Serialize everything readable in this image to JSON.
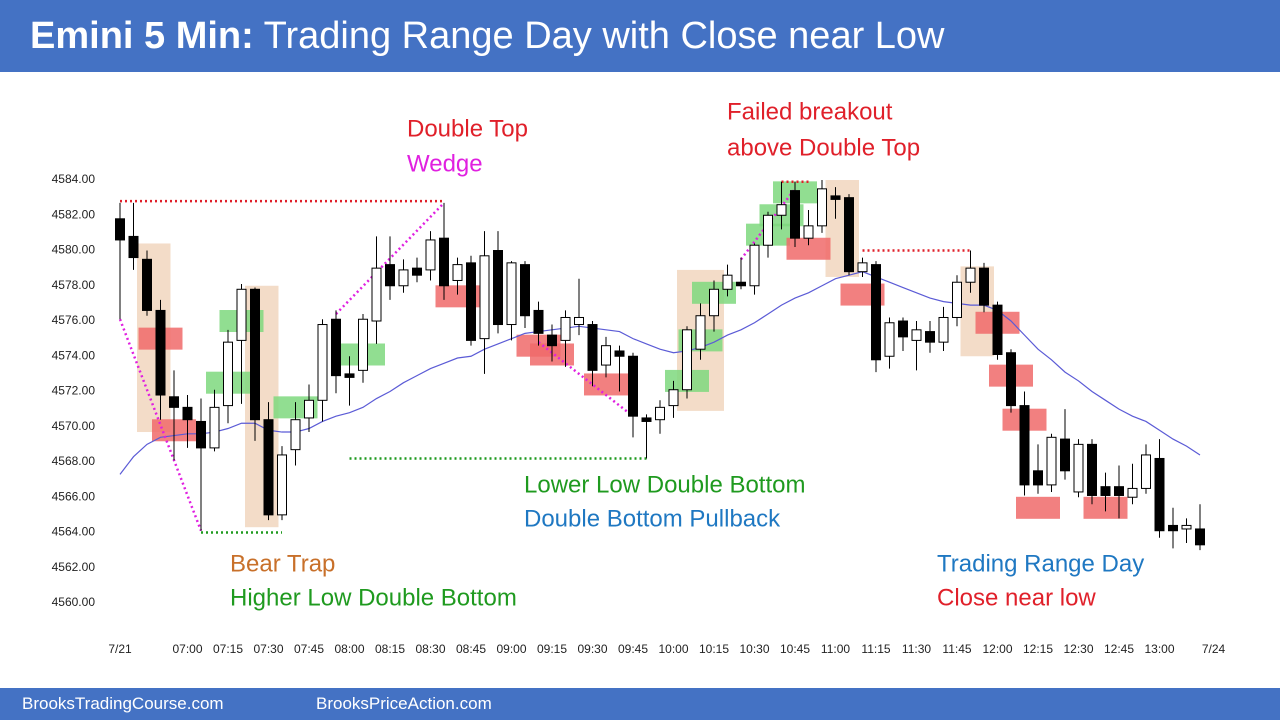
{
  "header": {
    "title_bold": "Emini 5 Min:",
    "title": "Trading Range Day with Close near Low"
  },
  "footer": {
    "left": "BrooksTradingCourse.com",
    "right": "BrooksPriceAction.com"
  },
  "chart_data": {
    "type": "candlestick",
    "categories": [
      "7/21",
      null,
      null,
      null,
      null,
      "07:00",
      null,
      null,
      "07:15",
      null,
      null,
      "07:30",
      null,
      null,
      "07:45",
      null,
      null,
      "08:00",
      null,
      null,
      "08:15",
      null,
      null,
      "08:30",
      null,
      null,
      "08:45",
      null,
      null,
      "09:00",
      null,
      null,
      "09:15",
      null,
      null,
      "09:30",
      null,
      null,
      "09:45",
      null,
      null,
      "10:00",
      null,
      null,
      "10:15",
      null,
      null,
      "10:30",
      null,
      null,
      "10:45",
      null,
      null,
      "11:00",
      null,
      null,
      "11:15",
      null,
      null,
      "11:30",
      null,
      null,
      "11:45",
      null,
      null,
      "12:00",
      null,
      null,
      "12:15",
      null,
      null,
      "12:30",
      null,
      null,
      "12:45",
      null,
      null,
      "13:00",
      null,
      null,
      null,
      "7/24"
    ],
    "open": [
      4581.8,
      4580.8,
      4579.5,
      4576.6,
      4571.7,
      4571.1,
      4570.3,
      4568.8,
      4571.2,
      4574.9,
      4577.8,
      4570.4,
      4565.0,
      4568.7,
      4570.5,
      4571.5,
      4576.1,
      4573.0,
      4573.2,
      4576.0,
      4579.2,
      4578.0,
      4579.0,
      4578.9,
      4580.7,
      4578.3,
      4579.3,
      4575.0,
      4580.0,
      4575.8,
      4579.2,
      4576.6,
      4575.2,
      4574.9,
      4575.8,
      4575.8,
      4573.5,
      4574.3,
      4574.0,
      4570.5,
      4570.4,
      4571.2,
      4572.1,
      4574.4,
      4576.3,
      4577.8,
      4578.2,
      4578.0,
      4580.3,
      4582.0,
      4583.4,
      4580.7,
      4581.4,
      4583.1,
      4583.0,
      4578.8,
      4579.2,
      4574.0,
      4576.0,
      4574.9,
      4575.4,
      4574.8,
      4576.2,
      4578.2,
      4579.0,
      4576.9,
      4574.2,
      4571.2,
      4567.5,
      4566.7,
      4569.3,
      4566.3,
      4569.0,
      4566.6,
      4566.6,
      4566.0,
      4566.5,
      4568.2,
      4564.4,
      4564.2,
      4564.2,
      null
    ],
    "high": [
      4582.7,
      4582.7,
      4580.0,
      4577.2,
      4573.2,
      4571.8,
      4571.6,
      4572.1,
      4575.5,
      4578.1,
      4577.9,
      4571.4,
      4568.9,
      4571.4,
      4572.4,
      4576.1,
      4576.6,
      4574.0,
      4576.4,
      4580.8,
      4580.8,
      4579.5,
      4579.6,
      4581.1,
      4582.7,
      4579.6,
      4579.7,
      4581.1,
      4581.1,
      4579.4,
      4579.4,
      4577.1,
      4575.8,
      4576.6,
      4578.4,
      4576.0,
      4575.1,
      4574.6,
      4574.2,
      4570.7,
      4571.5,
      4572.6,
      4575.7,
      4577.0,
      4578.3,
      4579.2,
      4579.6,
      4580.4,
      4582.2,
      4583.9,
      4583.9,
      4582.3,
      4584.0,
      4583.6,
      4583.2,
      4579.6,
      4579.4,
      4576.2,
      4576.2,
      4576.0,
      4576.0,
      4576.8,
      4578.6,
      4580.0,
      4579.3,
      4577.1,
      4574.4,
      4572.0,
      4569.0,
      4569.6,
      4571.0,
      4569.3,
      4569.3,
      4567.4,
      4567.8,
      4567.9,
      4569.0,
      4569.3,
      4565.4,
      4564.8,
      4565.6,
      null
    ],
    "low": [
      4576.1,
      4578.9,
      4576.3,
      4570.4,
      4568.1,
      4568.8,
      4564.1,
      4568.6,
      4570.2,
      4571.3,
      4569.2,
      4564.7,
      4564.7,
      4567.8,
      4569.7,
      4570.3,
      4571.9,
      4571.2,
      4572.5,
      4574.7,
      4577.2,
      4577.6,
      4578.2,
      4578.3,
      4577.2,
      4577.5,
      4574.6,
      4573.0,
      4575.3,
      4574.9,
      4575.6,
      4574.6,
      4573.7,
      4573.4,
      4575.2,
      4572.3,
      4572.8,
      4572.0,
      4569.4,
      4568.2,
      4569.6,
      4570.5,
      4571.6,
      4573.8,
      4575.4,
      4577.4,
      4577.8,
      4577.5,
      4579.6,
      4581.2,
      4580.2,
      4580.3,
      4581.0,
      4581.8,
      4578.6,
      4578.5,
      4573.1,
      4573.3,
      4574.3,
      4573.2,
      4574.2,
      4574.3,
      4575.7,
      4577.6,
      4576.5,
      4573.8,
      4570.8,
      4566.1,
      4566.2,
      4566.3,
      4567.0,
      4566.0,
      4565.6,
      4565.2,
      4564.8,
      4565.6,
      4566.2,
      4563.7,
      4563.1,
      4563.4,
      4563.0,
      null
    ],
    "close": [
      4580.6,
      4579.6,
      4576.6,
      4571.8,
      4571.1,
      4570.4,
      4568.8,
      4571.1,
      4574.8,
      4577.8,
      4570.4,
      4565.0,
      4568.4,
      4570.4,
      4571.5,
      4575.8,
      4572.9,
      4572.8,
      4576.1,
      4579.0,
      4578.0,
      4578.9,
      4578.6,
      4580.6,
      4578.0,
      4579.2,
      4574.9,
      4579.7,
      4575.8,
      4579.3,
      4576.3,
      4575.3,
      4574.6,
      4576.2,
      4576.2,
      4573.2,
      4574.6,
      4574.0,
      4570.6,
      4570.3,
      4571.1,
      4572.1,
      4575.5,
      4576.3,
      4577.8,
      4578.6,
      4578.0,
      4580.3,
      4582.0,
      4582.6,
      4580.7,
      4581.4,
      4583.5,
      4582.9,
      4578.8,
      4579.3,
      4573.8,
      4575.9,
      4575.1,
      4575.5,
      4574.8,
      4576.2,
      4578.2,
      4579.0,
      4576.9,
      4574.1,
      4571.2,
      4566.7,
      4566.7,
      4569.4,
      4567.5,
      4569.0,
      4566.1,
      4566.1,
      4566.1,
      4566.5,
      4568.4,
      4564.1,
      4564.1,
      4564.4,
      4563.3,
      null
    ],
    "ema": {
      "color": "#5b5bd6",
      "values": [
        4567.3,
        4568.3,
        4569.0,
        4569.4,
        4569.5,
        4569.6,
        4569.6,
        4569.7,
        4569.9,
        4570.2,
        4570.2,
        4569.8,
        4569.7,
        4569.7,
        4569.9,
        4570.3,
        4570.6,
        4570.8,
        4571.1,
        4571.6,
        4572.0,
        4572.5,
        4572.9,
        4573.3,
        4573.6,
        4573.9,
        4574.0,
        4574.4,
        4574.7,
        4575.0,
        4575.3,
        4575.4,
        4575.5,
        4575.6,
        4575.7,
        4575.6,
        4575.5,
        4575.4,
        4575.0,
        4574.7,
        4574.4,
        4574.2,
        4574.3,
        4574.5,
        4574.8,
        4575.2,
        4575.5,
        4575.9,
        4576.4,
        4576.9,
        4577.3,
        4577.6,
        4578.0,
        4578.4,
        4578.6,
        4578.8,
        4578.5,
        4578.2,
        4577.9,
        4577.6,
        4577.3,
        4577.1,
        4577.0,
        4576.9,
        4576.9,
        4576.6,
        4576.0,
        4575.2,
        4574.4,
        4573.8,
        4573.1,
        4572.6,
        4572.0,
        4571.5,
        4571.0,
        4570.6,
        4570.3,
        4569.8,
        4569.3,
        4568.9,
        4568.4,
        null
      ]
    },
    "ylim": [
      4559,
      4585
    ],
    "yticks": [
      {
        "value": 4584,
        "label": "4584.00"
      },
      {
        "value": 4582,
        "label": "4582.00"
      },
      {
        "value": 4580,
        "label": "4580.00"
      },
      {
        "value": 4578,
        "label": "4578.00"
      },
      {
        "value": 4576,
        "label": "4576.00"
      },
      {
        "value": 4574,
        "label": "4574.00"
      },
      {
        "value": 4572,
        "label": "4572.00"
      },
      {
        "value": 4570,
        "label": "4570.00"
      },
      {
        "value": 4568,
        "label": "4568.00"
      },
      {
        "value": 4566,
        "label": "4566.00"
      },
      {
        "value": 4564,
        "label": "4564.00"
      },
      {
        "value": 4562,
        "label": "4562.00"
      },
      {
        "value": 4560,
        "label": "4560.00"
      }
    ],
    "ranges": [
      {
        "bars": [
          2,
          3
        ],
        "prices": [
          4569.7,
          4580.4
        ],
        "color": "#f3dcc8"
      },
      {
        "bars": [
          10,
          11
        ],
        "prices": [
          4564.3,
          4578.0
        ],
        "color": "#f3dcc8"
      },
      {
        "bars": [
          42,
          44
        ],
        "prices": [
          4570.9,
          4578.9
        ],
        "color": "#f3dcc8"
      },
      {
        "bars": [
          53,
          54
        ],
        "prices": [
          4578.5,
          4584.0
        ],
        "color": "#f3dcc8"
      },
      {
        "bars": [
          63,
          64
        ],
        "prices": [
          4574.0,
          4579.1
        ],
        "color": "#f3dcc8"
      }
    ],
    "highlights": [
      {
        "bar": 9,
        "price": 4576.0,
        "color": "#7ed87e"
      },
      {
        "bar": 8,
        "price": 4572.5,
        "color": "#7ed87e"
      },
      {
        "bar": 13,
        "price": 4571.1,
        "color": "#7ed87e"
      },
      {
        "bar": 18,
        "price": 4574.1,
        "color": "#7ed87e"
      },
      {
        "bar": 42,
        "price": 4572.6,
        "color": "#7ed87e"
      },
      {
        "bar": 43,
        "price": 4574.9,
        "color": "#7ed87e"
      },
      {
        "bar": 44,
        "price": 4577.6,
        "color": "#7ed87e"
      },
      {
        "bar": 48,
        "price": 4580.9,
        "color": "#7ed87e"
      },
      {
        "bar": 49,
        "price": 4582.0,
        "color": "#7ed87e"
      },
      {
        "bar": 50,
        "price": 4583.3,
        "color": "#7ed87e"
      },
      {
        "bar": 3,
        "price": 4575.0,
        "color": "#f06a6a"
      },
      {
        "bar": 4,
        "price": 4569.8,
        "color": "#f06a6a"
      },
      {
        "bar": 25,
        "price": 4577.4,
        "color": "#f06a6a"
      },
      {
        "bar": 31,
        "price": 4574.6,
        "color": "#f06a6a"
      },
      {
        "bar": 32,
        "price": 4574.1,
        "color": "#f06a6a"
      },
      {
        "bar": 36,
        "price": 4572.4,
        "color": "#f06a6a"
      },
      {
        "bar": 51,
        "price": 4580.1,
        "color": "#f06a6a"
      },
      {
        "bar": 55,
        "price": 4577.5,
        "color": "#f06a6a"
      },
      {
        "bar": 65,
        "price": 4575.9,
        "color": "#f06a6a"
      },
      {
        "bar": 66,
        "price": 4572.9,
        "color": "#f06a6a"
      },
      {
        "bar": 67,
        "price": 4570.4,
        "color": "#f06a6a"
      },
      {
        "bar": 68,
        "price": 4565.4,
        "color": "#f06a6a"
      },
      {
        "bar": 73,
        "price": 4565.4,
        "color": "#f06a6a"
      }
    ],
    "lines": [
      {
        "from": [
          0,
          4582.8
        ],
        "to": [
          24,
          4582.8
        ],
        "color": "#e0202a"
      },
      {
        "from": [
          49,
          4583.9
        ],
        "to": [
          51,
          4583.9
        ],
        "color": "#e0202a"
      },
      {
        "from": [
          55,
          4580.0
        ],
        "to": [
          63,
          4580.0
        ],
        "color": "#e0202a"
      },
      {
        "from": [
          6,
          4564.0
        ],
        "to": [
          12,
          4564.0
        ],
        "color": "#1f9a1f"
      },
      {
        "from": [
          17,
          4568.2
        ],
        "to": [
          39,
          4568.2
        ],
        "color": "#1f9a1f"
      },
      {
        "from": [
          0,
          4576.1
        ],
        "to": [
          6,
          4564.1
        ],
        "color": "#e020e0"
      },
      {
        "from": [
          16,
          4576.4
        ],
        "to": [
          24,
          4582.7
        ],
        "color": "#e020e0"
      },
      {
        "from": [
          31,
          4574.8
        ],
        "to": [
          38,
          4570.6
        ],
        "color": "#e020e0"
      },
      {
        "from": [
          46,
          4579.5
        ],
        "to": [
          50,
          4583.5
        ],
        "color": "#e020e0"
      }
    ],
    "annotations": [
      {
        "text": "Double Top",
        "color": "#e0202a"
      },
      {
        "text": "Wedge",
        "color": "#e020e0"
      },
      {
        "text": "Failed breakout",
        "color": "#e0202a"
      },
      {
        "text": "above Double Top",
        "color": "#e0202a"
      },
      {
        "text": "Lower Low Double Bottom",
        "color": "#1f9a1f"
      },
      {
        "text": "Double Bottom Pullback",
        "color": "#1f78c2"
      },
      {
        "text": "Bear Trap",
        "color": "#c8702a"
      },
      {
        "text": "Higher Low Double Bottom",
        "color": "#1f9a1f"
      },
      {
        "text": "Trading Range Day",
        "color": "#1f78c2"
      },
      {
        "text": "Close near low",
        "color": "#e0202a"
      }
    ]
  }
}
